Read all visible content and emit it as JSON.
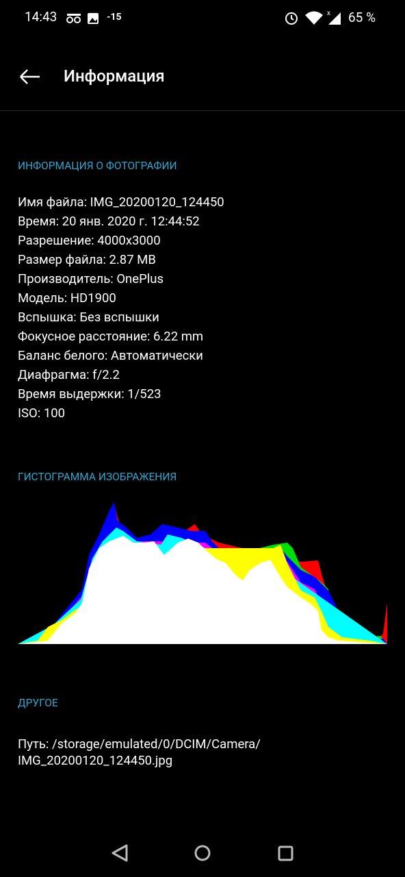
{
  "status_bar": {
    "time": "14:43",
    "temperature": "-15",
    "battery": "65 %"
  },
  "header": {
    "title": "Информация"
  },
  "sections": [
    {
      "title": "ИНФОРМАЦИЯ О ФОТОГРАФИИ",
      "rows": [
        "Имя файла: IMG_20200120_124450",
        "Время: 20 янв. 2020 г. 12:44:52",
        "Разрешение: 4000x3000",
        "Размер файла: 2.87 MB",
        "Производитель: OnePlus",
        "Модель: HD1900",
        "Вспышка: Без вспышки",
        "Фокусное расстояние: 6.22 mm",
        "Баланс белого: Автоматически",
        "Диафрагма: f/2.2",
        "Время выдержки: 1/523",
        "ISO: 100"
      ]
    },
    {
      "title": "ГИСТОГРАММА ИЗОБРАЖЕНИЯ"
    },
    {
      "title": "ДРУГОЕ",
      "rows": [
        "Путь: /storage/emulated/0/DCIM/Camera/",
        "IMG_20200120_124450.jpg"
      ]
    }
  ]
}
